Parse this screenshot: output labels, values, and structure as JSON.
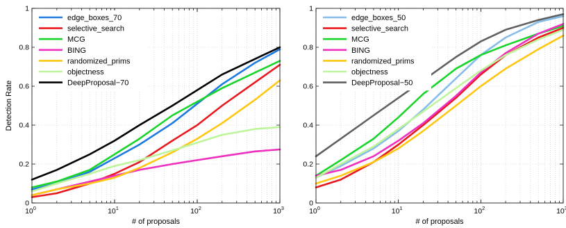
{
  "chart_data": [
    {
      "type": "line",
      "xscale": "log",
      "xlim": [
        1,
        1000
      ],
      "ylim": [
        0,
        1
      ],
      "xlabel": "# of proposals",
      "ylabel": "Detection Rate",
      "grid": true,
      "legend_position": "top-left",
      "xticks": [
        {
          "base": "10",
          "exp": "0"
        },
        {
          "base": "10",
          "exp": "1"
        },
        {
          "base": "10",
          "exp": "2"
        },
        {
          "base": "10",
          "exp": "3"
        }
      ],
      "yticks": [
        "0",
        "0.2",
        "0.4",
        "0.6",
        "0.8",
        "1"
      ],
      "series": [
        {
          "name": "edge_boxes_70",
          "color": "#1f7ae0",
          "x": [
            1,
            2,
            5,
            10,
            20,
            50,
            100,
            200,
            500,
            1000
          ],
          "y": [
            0.07,
            0.1,
            0.16,
            0.23,
            0.3,
            0.41,
            0.51,
            0.61,
            0.72,
            0.79
          ]
        },
        {
          "name": "selective_search",
          "color": "#e8191e",
          "x": [
            1,
            2,
            5,
            10,
            20,
            50,
            100,
            200,
            500,
            1000
          ],
          "y": [
            0.03,
            0.05,
            0.1,
            0.15,
            0.21,
            0.32,
            0.4,
            0.5,
            0.62,
            0.71
          ]
        },
        {
          "name": "MCG",
          "color": "#19d42a",
          "x": [
            1,
            2,
            5,
            10,
            20,
            50,
            100,
            200,
            500,
            1000
          ],
          "y": [
            0.08,
            0.11,
            0.17,
            0.25,
            0.33,
            0.45,
            0.52,
            0.59,
            0.67,
            0.73
          ]
        },
        {
          "name": "BING",
          "color": "#ee2fbf",
          "x": [
            1,
            2,
            5,
            10,
            20,
            50,
            100,
            200,
            500,
            1000
          ],
          "y": [
            0.04,
            0.07,
            0.11,
            0.14,
            0.17,
            0.2,
            0.22,
            0.24,
            0.265,
            0.275
          ]
        },
        {
          "name": "randomized_prims",
          "color": "#ffc712",
          "x": [
            1,
            2,
            5,
            10,
            20,
            50,
            100,
            200,
            500,
            1000
          ],
          "y": [
            0.04,
            0.07,
            0.1,
            0.13,
            0.18,
            0.26,
            0.33,
            0.41,
            0.53,
            0.63
          ]
        },
        {
          "name": "objectness",
          "color": "#bff59a",
          "x": [
            1,
            2,
            5,
            10,
            20,
            50,
            100,
            200,
            500,
            1000
          ],
          "y": [
            0.06,
            0.1,
            0.15,
            0.19,
            0.22,
            0.27,
            0.31,
            0.35,
            0.38,
            0.39
          ]
        },
        {
          "name": "DeepProposal−70",
          "color": "#000000",
          "x": [
            1,
            2,
            5,
            10,
            20,
            50,
            100,
            200,
            500,
            1000
          ],
          "y": [
            0.12,
            0.17,
            0.25,
            0.32,
            0.4,
            0.5,
            0.58,
            0.66,
            0.74,
            0.8
          ]
        }
      ]
    },
    {
      "type": "line",
      "xscale": "log",
      "xlim": [
        1,
        1000
      ],
      "ylim": [
        0,
        1
      ],
      "xlabel": "# of proposals",
      "ylabel": "",
      "grid": true,
      "legend_position": "top-left",
      "xticks": [
        {
          "base": "10",
          "exp": "0"
        },
        {
          "base": "10",
          "exp": "1"
        },
        {
          "base": "10",
          "exp": "2"
        },
        {
          "base": "10",
          "exp": "3"
        }
      ],
      "yticks": [
        "0",
        "0.2",
        "0.4",
        "0.6",
        "0.8",
        "1"
      ],
      "series": [
        {
          "name": "edge_boxes_50",
          "color": "#86bdea",
          "x": [
            1,
            2,
            5,
            10,
            20,
            50,
            100,
            200,
            500,
            1000
          ],
          "y": [
            0.13,
            0.19,
            0.28,
            0.37,
            0.48,
            0.64,
            0.76,
            0.85,
            0.93,
            0.96
          ]
        },
        {
          "name": "selective_search",
          "color": "#e8191e",
          "x": [
            1,
            2,
            5,
            10,
            20,
            50,
            100,
            200,
            500,
            1000
          ],
          "y": [
            0.08,
            0.12,
            0.21,
            0.3,
            0.4,
            0.54,
            0.66,
            0.76,
            0.85,
            0.9
          ]
        },
        {
          "name": "MCG",
          "color": "#19d42a",
          "x": [
            1,
            2,
            5,
            10,
            20,
            50,
            100,
            200,
            500,
            1000
          ],
          "y": [
            0.14,
            0.22,
            0.33,
            0.44,
            0.56,
            0.69,
            0.76,
            0.81,
            0.87,
            0.91
          ]
        },
        {
          "name": "BING",
          "color": "#ee2fbf",
          "x": [
            1,
            2,
            5,
            10,
            20,
            50,
            100,
            200,
            500,
            1000
          ],
          "y": [
            0.14,
            0.17,
            0.24,
            0.32,
            0.41,
            0.55,
            0.67,
            0.77,
            0.87,
            0.92
          ]
        },
        {
          "name": "randomized_prims",
          "color": "#ffc712",
          "x": [
            1,
            2,
            5,
            10,
            20,
            50,
            100,
            200,
            500,
            1000
          ],
          "y": [
            0.1,
            0.14,
            0.21,
            0.28,
            0.37,
            0.5,
            0.6,
            0.69,
            0.79,
            0.86
          ]
        },
        {
          "name": "objectness",
          "color": "#bff59a",
          "x": [
            1,
            2,
            5,
            10,
            20,
            50,
            100,
            200,
            500,
            1000
          ],
          "y": [
            0.13,
            0.2,
            0.29,
            0.38,
            0.47,
            0.59,
            0.68,
            0.76,
            0.84,
            0.89
          ]
        },
        {
          "name": "DeepProposal−50",
          "color": "#606060",
          "x": [
            1,
            2,
            5,
            10,
            20,
            50,
            100,
            200,
            500,
            1000
          ],
          "y": [
            0.24,
            0.33,
            0.45,
            0.54,
            0.63,
            0.75,
            0.83,
            0.89,
            0.94,
            0.97
          ]
        }
      ]
    }
  ]
}
